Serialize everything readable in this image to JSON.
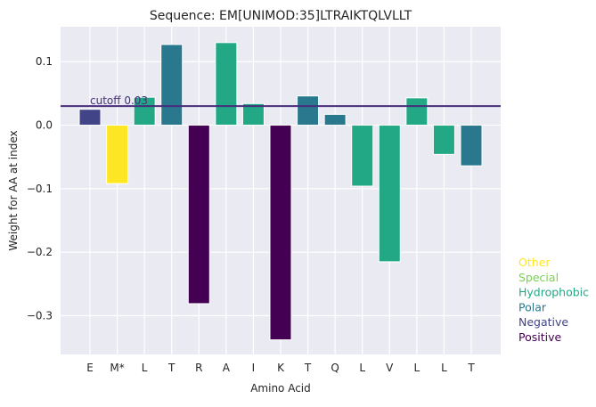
{
  "chart_data": {
    "type": "bar",
    "title": "Sequence: EM[UNIMOD:35]LTRAIKTQLVLLT",
    "xlabel": "Amino Acid",
    "ylabel": "Weight for AA at index",
    "categories": [
      "E",
      "M*",
      "L",
      "T",
      "R",
      "A",
      "I",
      "K",
      "T",
      "Q",
      "L",
      "V",
      "L",
      "L",
      "T"
    ],
    "values": [
      0.025,
      -0.092,
      0.044,
      0.127,
      -0.281,
      0.13,
      0.034,
      -0.338,
      0.046,
      0.017,
      -0.096,
      -0.215,
      0.043,
      -0.046,
      -0.064
    ],
    "groups": [
      "Negative",
      "Other",
      "Hydrophobic",
      "Polar",
      "Positive",
      "Hydrophobic",
      "Hydrophobic",
      "Positive",
      "Polar",
      "Polar",
      "Hydrophobic",
      "Hydrophobic",
      "Hydrophobic",
      "Hydrophobic",
      "Polar"
    ],
    "ylim": [
      -0.361,
      0.155
    ],
    "yticks": [
      0.1,
      0.0,
      -0.1,
      -0.2,
      -0.3
    ],
    "ytick_labels": [
      "0.1",
      "0.0",
      "−0.1",
      "−0.2",
      "−0.3"
    ],
    "cutoff": {
      "value": 0.03,
      "label": "cutoff 0.03",
      "color": "#472d7b"
    },
    "grid": true,
    "legend_position": "right",
    "legend": [
      {
        "name": "Other",
        "color": "#fde725"
      },
      {
        "name": "Special",
        "color": "#7ad151"
      },
      {
        "name": "Hydrophobic",
        "color": "#22a884"
      },
      {
        "name": "Polar",
        "color": "#2a788e"
      },
      {
        "name": "Negative",
        "color": "#414487"
      },
      {
        "name": "Positive",
        "color": "#440154"
      }
    ]
  }
}
